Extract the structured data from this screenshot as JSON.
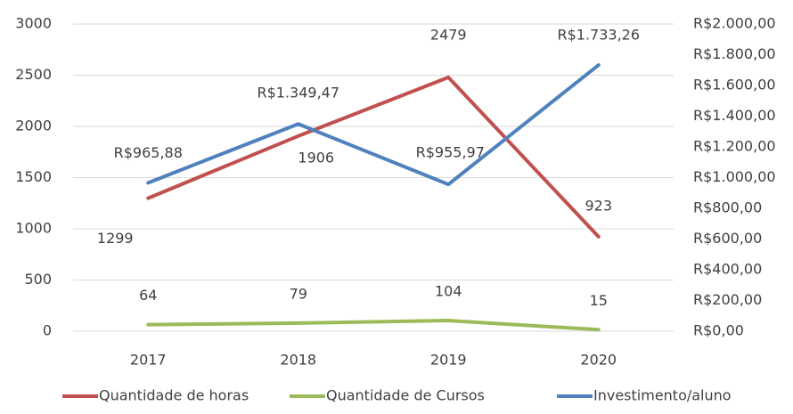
{
  "chart_data": {
    "type": "line",
    "categories": [
      "2017",
      "2018",
      "2019",
      "2020"
    ],
    "series": [
      {
        "name": "Quantidade de horas",
        "color": "#c0504d",
        "values": [
          1299,
          1906,
          2479,
          923
        ]
      },
      {
        "name": "Quantidade de Cursos",
        "color": "#9bbb59",
        "values": [
          64,
          79,
          104,
          15
        ]
      },
      {
        "name": "Investimento/aluno",
        "color": "#4f81bd",
        "axis": "y2",
        "values": [
          965.88,
          1349.47,
          955.97,
          1733.26
        ],
        "value_labels": [
          "R$965,88",
          "R$1.349,47",
          "R$955,97",
          "R$1.733,26"
        ]
      }
    ],
    "ylim": [
      0,
      3000
    ],
    "yticks": [
      0,
      500,
      1000,
      1500,
      2000,
      2500,
      3000
    ],
    "y2lim": [
      0,
      2000
    ],
    "y2ticks": [
      {
        "value": 0,
        "label": "R$0,00"
      },
      {
        "value": 200,
        "label": "R$200,00"
      },
      {
        "value": 400,
        "label": "R$400,00"
      },
      {
        "value": 600,
        "label": "R$600,00"
      },
      {
        "value": 800,
        "label": "R$800,00"
      },
      {
        "value": 1000,
        "label": "R$1.000,00"
      },
      {
        "value": 1200,
        "label": "R$1.200,00"
      },
      {
        "value": 1400,
        "label": "R$1.400,00"
      },
      {
        "value": 1600,
        "label": "R$1.600,00"
      },
      {
        "value": 1800,
        "label": "R$1.800,00"
      },
      {
        "value": 2000,
        "label": "R$2.000,00"
      }
    ],
    "legend": "bottom"
  }
}
